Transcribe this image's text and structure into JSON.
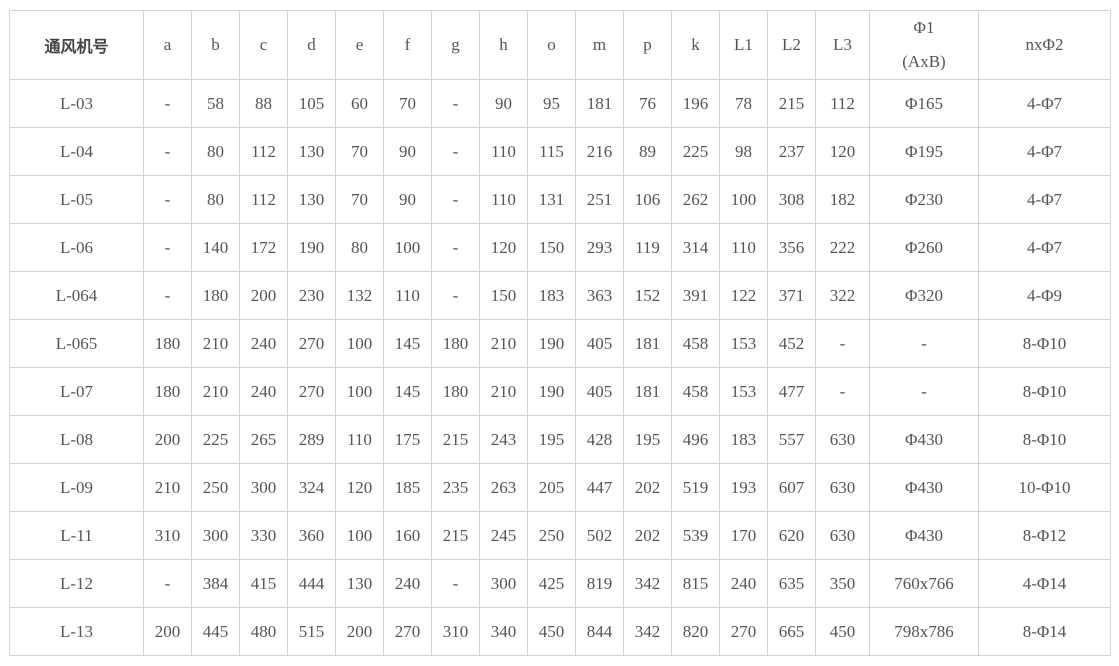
{
  "table": {
    "headers": [
      "通风机号",
      "a",
      "b",
      "c",
      "d",
      "e",
      "f",
      "g",
      "h",
      "o",
      "m",
      "p",
      "k",
      "L1",
      "L2",
      "L3",
      [
        "Φ1",
        "(AxB)"
      ],
      "nxΦ2"
    ],
    "rows": [
      [
        "L-03",
        "-",
        "58",
        "88",
        "105",
        "60",
        "70",
        "-",
        "90",
        "95",
        "181",
        "76",
        "196",
        "78",
        "215",
        "112",
        "Φ165",
        "4-Φ7"
      ],
      [
        "L-04",
        "-",
        "80",
        "112",
        "130",
        "70",
        "90",
        "-",
        "110",
        "115",
        "216",
        "89",
        "225",
        "98",
        "237",
        "120",
        "Φ195",
        "4-Φ7"
      ],
      [
        "L-05",
        "-",
        "80",
        "112",
        "130",
        "70",
        "90",
        "-",
        "110",
        "131",
        "251",
        "106",
        "262",
        "100",
        "308",
        "182",
        "Φ230",
        "4-Φ7"
      ],
      [
        "L-06",
        "-",
        "140",
        "172",
        "190",
        "80",
        "100",
        "-",
        "120",
        "150",
        "293",
        "119",
        "314",
        "110",
        "356",
        "222",
        "Φ260",
        "4-Φ7"
      ],
      [
        "L-064",
        "-",
        "180",
        "200",
        "230",
        "132",
        "110",
        "-",
        "150",
        "183",
        "363",
        "152",
        "391",
        "122",
        "371",
        "322",
        "Φ320",
        "4-Φ9"
      ],
      [
        "L-065",
        "180",
        "210",
        "240",
        "270",
        "100",
        "145",
        "180",
        "210",
        "190",
        "405",
        "181",
        "458",
        "153",
        "452",
        "-",
        "-",
        "8-Φ10"
      ],
      [
        "L-07",
        "180",
        "210",
        "240",
        "270",
        "100",
        "145",
        "180",
        "210",
        "190",
        "405",
        "181",
        "458",
        "153",
        "477",
        "-",
        "-",
        "8-Φ10"
      ],
      [
        "L-08",
        "200",
        "225",
        "265",
        "289",
        "110",
        "175",
        "215",
        "243",
        "195",
        "428",
        "195",
        "496",
        "183",
        "557",
        "630",
        "Φ430",
        "8-Φ10"
      ],
      [
        "L-09",
        "210",
        "250",
        "300",
        "324",
        "120",
        "185",
        "235",
        "263",
        "205",
        "447",
        "202",
        "519",
        "193",
        "607",
        "630",
        "Φ430",
        "10-Φ10"
      ],
      [
        "L-11",
        "310",
        "300",
        "330",
        "360",
        "100",
        "160",
        "215",
        "245",
        "250",
        "502",
        "202",
        "539",
        "170",
        "620",
        "630",
        "Φ430",
        "8-Φ12"
      ],
      [
        "L-12",
        "-",
        "384",
        "415",
        "444",
        "130",
        "240",
        "-",
        "300",
        "425",
        "819",
        "342",
        "815",
        "240",
        "635",
        "350",
        "760x766",
        "4-Φ14"
      ],
      [
        "L-13",
        "200",
        "445",
        "480",
        "515",
        "200",
        "270",
        "310",
        "340",
        "450",
        "844",
        "342",
        "820",
        "270",
        "665",
        "450",
        "798x786",
        "8-Φ14"
      ]
    ]
  }
}
